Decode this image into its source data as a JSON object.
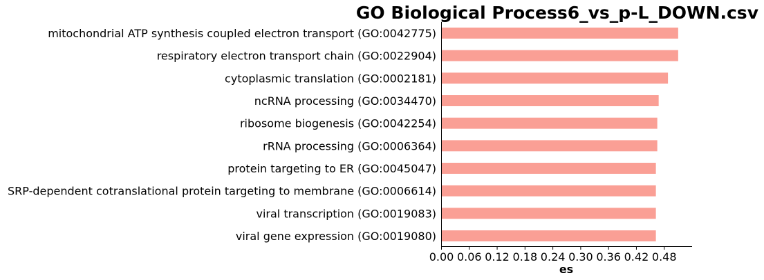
{
  "chart_data": {
    "type": "bar",
    "orientation": "horizontal",
    "title": "GO Biological Process6_vs_p-L_DOWN.csv",
    "xlabel": "es",
    "ylabel": "",
    "categories": [
      "mitochondrial ATP synthesis coupled electron transport (GO:0042775)",
      "respiratory electron transport chain (GO:0022904)",
      "cytoplasmic translation (GO:0002181)",
      "ncRNA processing (GO:0034470)",
      "ribosome biogenesis (GO:0042254)",
      "rRNA processing (GO:0006364)",
      "protein targeting to ER (GO:0045047)",
      "SRP-dependent cotranslational protein targeting to membrane (GO:0006614)",
      "viral transcription (GO:0019083)",
      "viral gene expression (GO:0019080)"
    ],
    "values": [
      0.51,
      0.51,
      0.488,
      0.468,
      0.465,
      0.465,
      0.462,
      0.462,
      0.462,
      0.462
    ],
    "xlim": [
      0,
      0.54
    ],
    "xticks": [
      "0.00",
      "0.06",
      "0.12",
      "0.18",
      "0.24",
      "0.30",
      "0.36",
      "0.42",
      "0.48"
    ],
    "bar_color": "#fa9f95",
    "grid": false,
    "legend": "none"
  }
}
